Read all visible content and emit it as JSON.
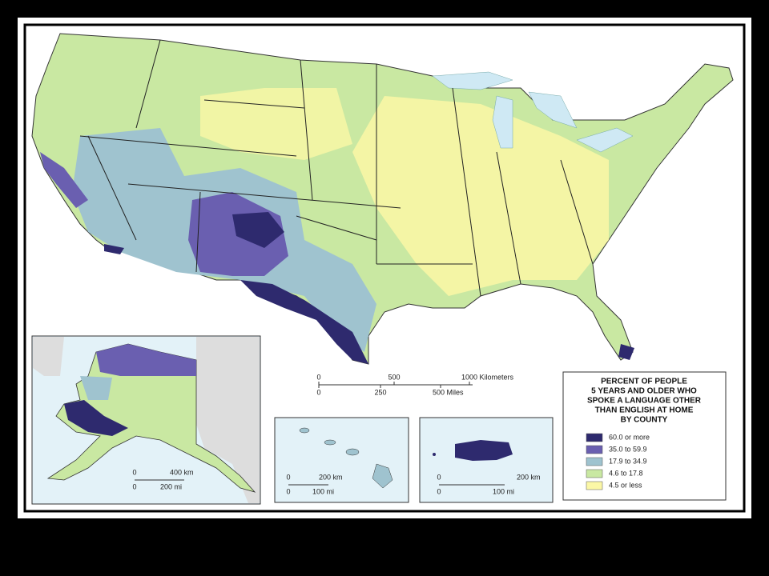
{
  "legend": {
    "title": [
      "PERCENT OF PEOPLE",
      "5 YEARS AND OLDER WHO",
      "SPOKE A LANGUAGE OTHER",
      "THAN ENGLISH AT HOME",
      "BY COUNTY"
    ],
    "items": [
      {
        "label": "60.0 or more",
        "color": "#2e2a6e"
      },
      {
        "label": "35.0 to 59.9",
        "color": "#6a5fb0"
      },
      {
        "label": "17.9 to 34.9",
        "color": "#9fc3cf"
      },
      {
        "label": "4.6 to 17.8",
        "color": "#c9e8a2"
      },
      {
        "label": "4.5 or less",
        "color": "#fbf7a6"
      }
    ]
  },
  "main_scale": {
    "km": [
      "0",
      "500",
      "1000 Kilometers"
    ],
    "mi": [
      "0",
      "250",
      "500 Miles"
    ]
  },
  "alaska_scale": {
    "km": [
      "0",
      "400 km"
    ],
    "mi": [
      "0",
      "200 mi"
    ]
  },
  "hawaii_scale": {
    "km": [
      "0",
      "200 km"
    ],
    "mi": [
      "0",
      "100 mi"
    ]
  },
  "puerto_rico_scale": {
    "km": [
      "0",
      "200 km"
    ],
    "mi": [
      "0",
      "100 mi"
    ]
  }
}
